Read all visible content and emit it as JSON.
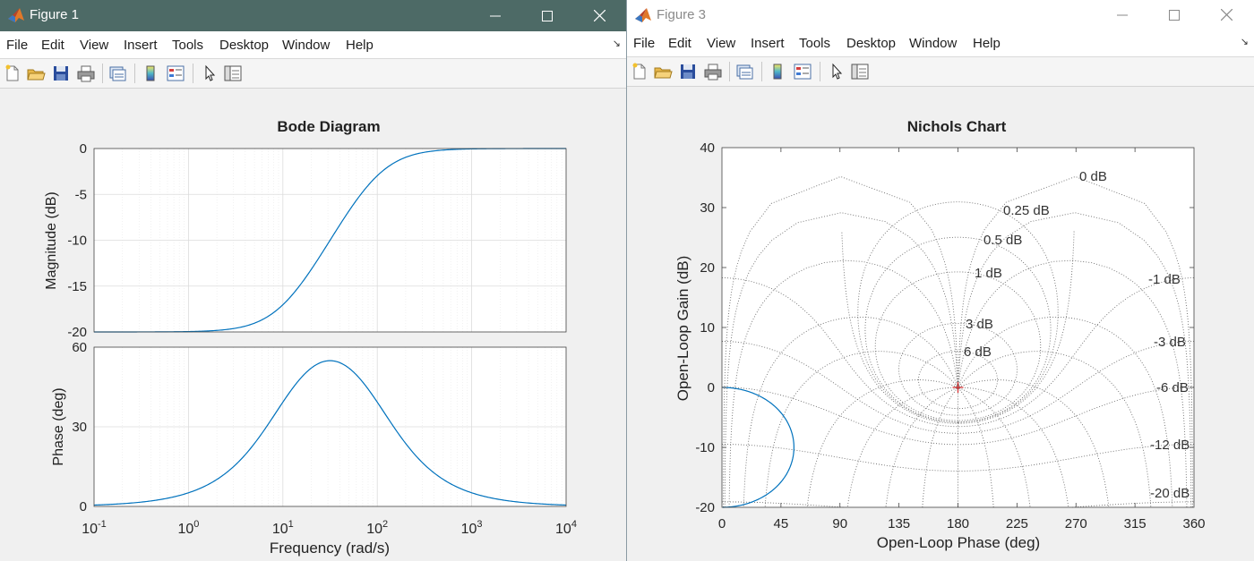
{
  "figure1": {
    "title": "Figure 1",
    "menu": [
      "File",
      "Edit",
      "View",
      "Insert",
      "Tools",
      "Desktop",
      "Window",
      "Help"
    ],
    "plot_title": "Bode Diagram",
    "mag_ylabel": "Magnitude (dB)",
    "phase_ylabel": "Phase (deg)",
    "xlabel": "Frequency  (rad/s)",
    "mag_ticks": [
      "0",
      "-5",
      "-10",
      "-15",
      "-20"
    ],
    "phase_ticks": [
      "60",
      "30",
      "0"
    ],
    "x_ticks": [
      {
        "base": "10",
        "exp": "-1"
      },
      {
        "base": "10",
        "exp": "0"
      },
      {
        "base": "10",
        "exp": "1"
      },
      {
        "base": "10",
        "exp": "2"
      },
      {
        "base": "10",
        "exp": "3"
      },
      {
        "base": "10",
        "exp": "4"
      }
    ]
  },
  "figure3": {
    "title": "Figure 3",
    "menu": [
      "File",
      "Edit",
      "View",
      "Insert",
      "Tools",
      "Desktop",
      "Window",
      "Help"
    ],
    "plot_title": "Nichols Chart",
    "ylabel": "Open-Loop Gain (dB)",
    "xlabel": "Open-Loop Phase (deg)",
    "y_ticks": [
      "40",
      "30",
      "20",
      "10",
      "0",
      "-10",
      "-20"
    ],
    "x_ticks": [
      "0",
      "45",
      "90",
      "135",
      "180",
      "225",
      "270",
      "315",
      "360"
    ],
    "contour_labels": [
      "0 dB",
      "0.25 dB",
      "0.5 dB",
      "1 dB",
      "3 dB",
      "6 dB",
      "-1 dB",
      "-3 dB",
      "-6 dB",
      "-12 dB",
      "-20 dB"
    ],
    "critical_point_color": "#d62728"
  },
  "colors": {
    "curve": "#0072bd",
    "grid": "#e6e6e6",
    "title_active": "#4d6a66",
    "title_inactive": "#ffffff"
  },
  "chart_data": [
    {
      "type": "line",
      "title": "Bode Diagram",
      "subplot": "magnitude",
      "xlabel": "Frequency  (rad/s)",
      "ylabel": "Magnitude (dB)",
      "xscale": "log",
      "xlim": [
        0.1,
        10000
      ],
      "ylim": [
        -20,
        0
      ],
      "grid": true,
      "x": [
        0.1,
        1,
        3,
        10,
        20,
        31.6,
        50,
        100,
        300,
        1000,
        10000
      ],
      "y": [
        -20,
        -19.9,
        -19.2,
        -16.4,
        -13.2,
        -10,
        -6.9,
        -3.6,
        -0.8,
        -0.1,
        0
      ]
    },
    {
      "type": "line",
      "title": "",
      "subplot": "phase",
      "xlabel": "Frequency  (rad/s)",
      "ylabel": "Phase (deg)",
      "xscale": "log",
      "xlim": [
        0.1,
        10000
      ],
      "ylim": [
        0,
        60
      ],
      "grid": true,
      "x": [
        0.1,
        1,
        3,
        10,
        20,
        31.6,
        50,
        100,
        300,
        1000,
        10000
      ],
      "y": [
        0.9,
        5.2,
        14.6,
        35.1,
        50.1,
        54.9,
        51.1,
        35.1,
        14.6,
        5.2,
        0.6
      ]
    },
    {
      "type": "line",
      "title": "Nichols Chart",
      "xlabel": "Open-Loop Phase (deg)",
      "ylabel": "Open-Loop Gain (dB)",
      "xlim": [
        0,
        360
      ],
      "ylim": [
        -20,
        40
      ],
      "grid": true,
      "x": [
        0,
        14.6,
        35.1,
        50.1,
        54.9,
        51.1,
        35.1,
        14.6,
        0
      ],
      "y": [
        0,
        -0.8,
        -3.6,
        -6.9,
        -10,
        -13.2,
        -16.4,
        -19.2,
        -20
      ]
    }
  ]
}
